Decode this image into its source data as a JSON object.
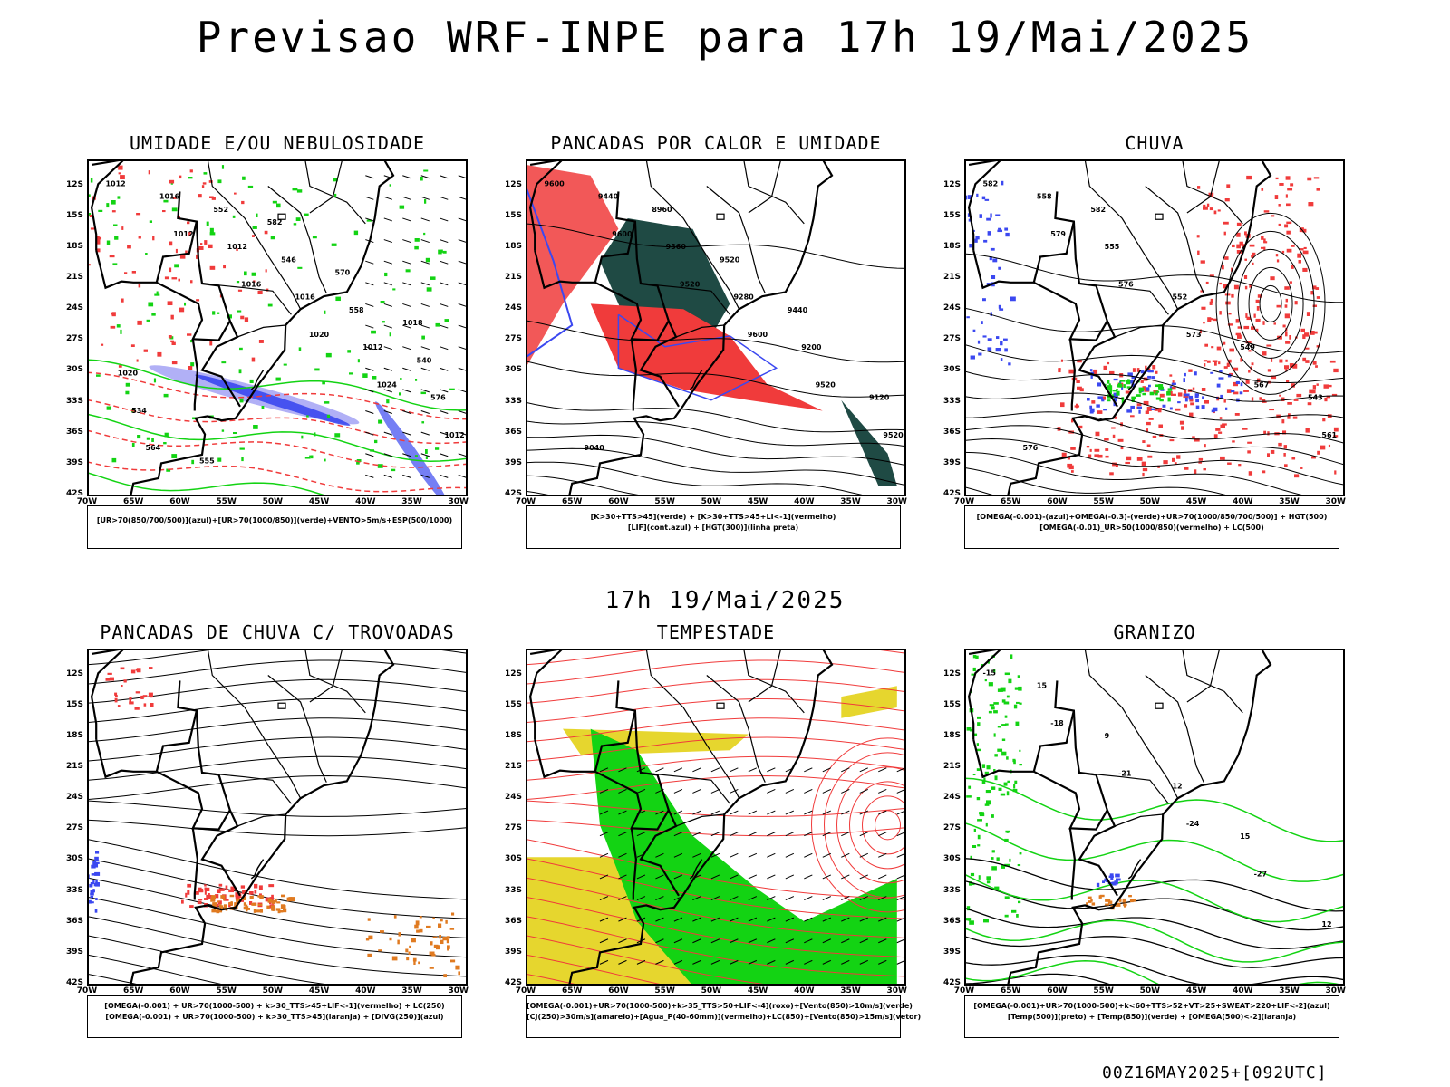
{
  "title": "Previsao WRF-INPE  para 17h 19/Mai/2025",
  "mid_title": "17h 19/Mai/2025",
  "footer": "00Z16MAY2025+[092UTC]",
  "axes": {
    "lat_ticks": [
      "12S",
      "15S",
      "18S",
      "21S",
      "24S",
      "27S",
      "30S",
      "33S",
      "36S",
      "39S",
      "42S"
    ],
    "lon_ticks": [
      "70W",
      "65W",
      "60W",
      "55W",
      "50W",
      "45W",
      "40W",
      "35W",
      "30W"
    ]
  },
  "colors": {
    "blue": "#3b48f0",
    "light_blue": "#a9a7f5",
    "green": "#13d313",
    "red": "#f03b3b",
    "dark_green": "#1f4a44",
    "yellow": "#e6d62e",
    "orange": "#e07a20",
    "map_line": "#000000"
  },
  "panels": [
    {
      "id": "umidade",
      "title": "UMIDADE E/OU NEBULOSIDADE",
      "legend": [
        "[UR>70(850/700/500)](azul)+[UR>70(1000/850)](verde)+VENTO>5m/s+ESP(500/1000)"
      ],
      "labels": [
        "1012",
        "1012",
        "1016",
        "1020",
        "1024",
        "1012",
        "1016",
        "1012",
        "1016",
        "1012",
        "576",
        "564",
        "552",
        "546",
        "558",
        "540",
        "534",
        "555",
        "582",
        "570",
        "1018",
        "1020"
      ]
    },
    {
      "id": "pancadas-calor",
      "title": "PANCADAS POR CALOR E UMIDADE",
      "legend": [
        "[K>30+TTS>45](verde) + [K>30+TTS>45+LI<-1](vermelho)",
        "[LIF](cont.azul) + [HGT(300)](linha preta)"
      ],
      "labels": [
        "9600",
        "9600",
        "9520",
        "9600",
        "9520",
        "9520",
        "9440",
        "9360",
        "9280",
        "9200",
        "9120",
        "9040",
        "8960",
        "9520",
        "9440"
      ]
    },
    {
      "id": "chuva",
      "title": "CHUVA",
      "legend": [
        "[OMEGA(-0.001)-(azul)+OMEGA(-0.3)-(verde)+UR>70(1000/850/700/500)] + HGT(500)",
        "[OMEGA(-0.01)_UR>50(1000/850)(vermelho) + LC(500)"
      ],
      "labels": [
        "582",
        "579",
        "576",
        "573",
        "567",
        "561",
        "558",
        "555",
        "552",
        "549",
        "543",
        "576",
        "582"
      ]
    },
    {
      "id": "pancadas-trovoadas",
      "title": "PANCADAS DE CHUVA C/ TROVOADAS",
      "legend": [
        "[OMEGA(-0.001) + UR>70(1000-500) + k>30_TTS>45+LIF<-1](vermelho) + LC(250)",
        "[OMEGA(-0.001) + UR>70(1000-500) + k>30_TTS>45](laranja) + [DIVG(250)](azul)"
      ],
      "labels": []
    },
    {
      "id": "tempestade",
      "title": "TEMPESTADE",
      "legend": [
        "[OMEGA(-0.001)+UR>70(1000-500)+k>35_TTS>50+LIF<-4](roxo)+[Vento(850)>10m/s](verde)",
        "[CJ(250)>30m/s](amarelo)+[Agua_P(40-60mm)](vermelho)+LC(850)+[Vento(850)>15m/s](vetor)"
      ],
      "labels": []
    },
    {
      "id": "granizo",
      "title": "GRANIZO",
      "legend": [
        "[OMEGA(-0.001)+UR>70(1000-500)+k<60+TTS>52+VT>25+SWEAT>220+LIF<-2](azul)",
        "[Temp(500)](preto) + [Temp(850)](verde) + [OMEGA(500)<-2](laranja)"
      ],
      "labels": [
        "-15",
        "-18",
        "-21",
        "-24",
        "-27",
        "12",
        "15",
        "9",
        "12",
        "15"
      ]
    }
  ]
}
